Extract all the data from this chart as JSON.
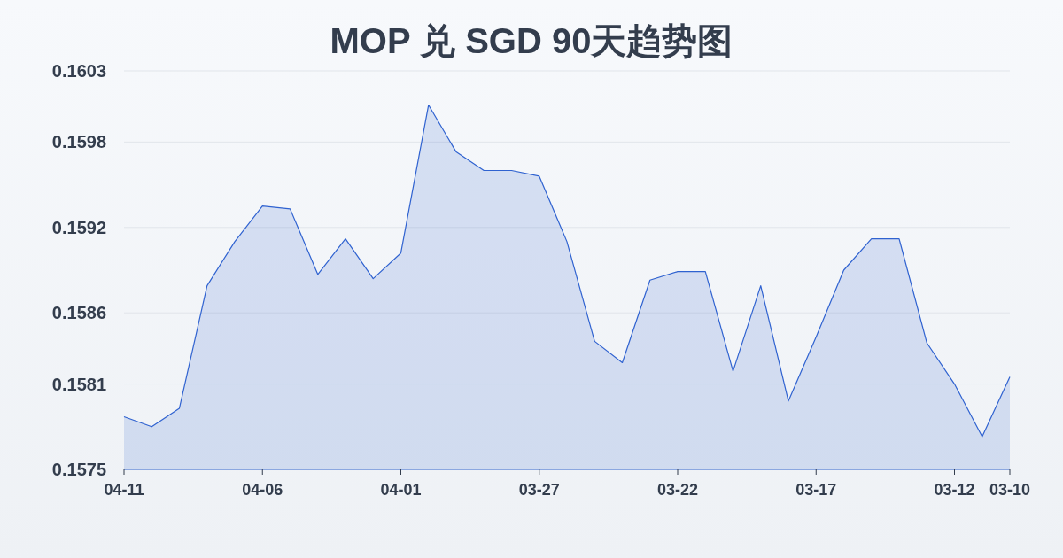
{
  "chart_data": {
    "type": "area",
    "title": "MOP 兑 SGD 90天趋势图",
    "categories": [
      "04-11",
      null,
      null,
      null,
      null,
      "04-06",
      null,
      null,
      null,
      null,
      "04-01",
      null,
      null,
      null,
      null,
      "03-27",
      null,
      null,
      null,
      null,
      "03-22",
      null,
      null,
      null,
      null,
      "03-17",
      null,
      null,
      null,
      null,
      "03-12",
      null,
      "03-10"
    ],
    "values": [
      0.15787,
      0.1578,
      0.15793,
      0.15879,
      0.1591,
      0.15935,
      0.15933,
      0.15887,
      0.15912,
      0.15884,
      0.15902,
      0.16006,
      0.15973,
      0.1596,
      0.1596,
      0.15956,
      0.1591,
      0.1584,
      0.15825,
      0.15883,
      0.15889,
      0.15889,
      0.15819,
      0.15879,
      0.15798,
      0.15843,
      0.1589,
      0.15912,
      0.15912,
      0.15839,
      0.1581,
      0.15773,
      0.15815
    ],
    "color": "#2f62d0",
    "ylim": [
      0.1575,
      0.1603
    ],
    "yticks": [
      0.1575,
      0.1581,
      0.1586,
      0.1592,
      0.1598,
      0.1603
    ],
    "grid": "y"
  }
}
